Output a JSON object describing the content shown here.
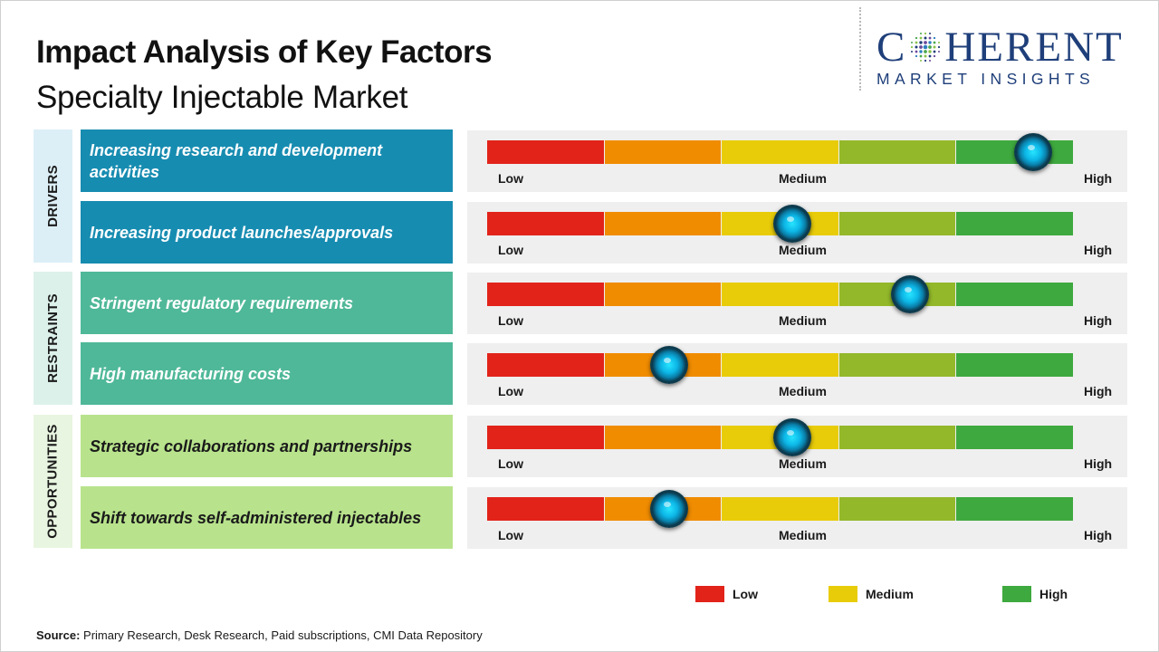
{
  "header": {
    "title": "Impact Analysis of Key Factors",
    "subtitle": "Specialty Injectable Market"
  },
  "logo": {
    "line1_prefix": "C",
    "line1_suffix": "HERENT",
    "line2": "MARKET INSIGHTS"
  },
  "categories": {
    "drivers": "DRIVERS",
    "restraints": "RESTRAINTS",
    "opportunities": "OPPORTUNITIES"
  },
  "chart_data": {
    "type": "gauge",
    "title": "Impact Analysis of Key Factors",
    "subtitle": "Specialty Injectable Market",
    "scale_labels": [
      "Low",
      "Medium",
      "High"
    ],
    "scale_range": [
      0,
      5
    ],
    "segment_colors": [
      "#e2231a",
      "#f08c00",
      "#e8cc0a",
      "#93b82a",
      "#3ea93e"
    ],
    "factors": [
      {
        "category": "DRIVERS",
        "label": "Increasing research and development activities",
        "value": 4.65
      },
      {
        "category": "DRIVERS",
        "label": "Increasing product launches/approvals",
        "value": 2.6
      },
      {
        "category": "RESTRAINTS",
        "label": "Stringent regulatory requirements",
        "value": 3.6
      },
      {
        "category": "RESTRAINTS",
        "label": "High manufacturing costs",
        "value": 1.55
      },
      {
        "category": "OPPORTUNITIES",
        "label": "Strategic collaborations and partnerships",
        "value": 2.6
      },
      {
        "category": "OPPORTUNITIES",
        "label": "Shift towards self-administered injectables",
        "value": 1.55
      }
    ],
    "legend": [
      {
        "label": "Low",
        "color": "#e2231a"
      },
      {
        "label": "Medium",
        "color": "#e8cc0a"
      },
      {
        "label": "High",
        "color": "#3ea93e"
      }
    ]
  },
  "source": {
    "label": "Source:",
    "text": " Primary Research, Desk Research, Paid subscriptions, CMI Data Repository"
  }
}
